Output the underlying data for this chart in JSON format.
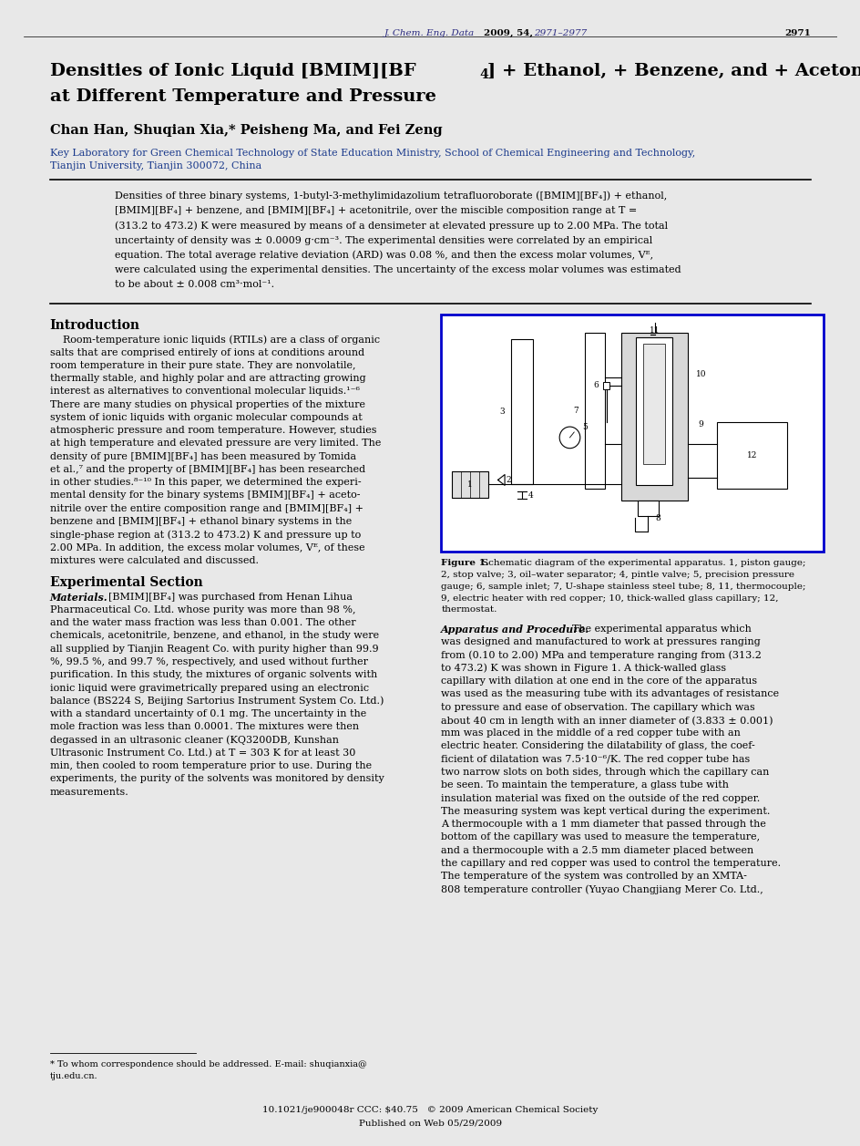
{
  "page_bg": "#ffffff",
  "outer_bg": "#e8e8e8",
  "header_journal_italic": "J. Chem. Eng. Data ",
  "header_bold": "2009, 54, ",
  "header_italic2": "2971–2977",
  "header_page_num": "2971",
  "title_line1": "Densities of Ionic Liquid [BMIM][BF",
  "title_sub": "4",
  "title_line1_end": "] + Ethanol, + Benzene, and + Acetonitrile",
  "title_line2": "at Different Temperature and Pressure",
  "authors": "Chan Han, Shuqian Xia,* Peisheng Ma, and Fei Zeng",
  "affil1": "Key Laboratory for Green Chemical Technology of State Education Ministry, School of Chemical Engineering and Technology,",
  "affil2": "Tianjin University, Tianjin 300072, China",
  "abstract_lines": [
    "Densities of three binary systems, 1-butyl-3-methylimidazolium tetrafluoroborate ([BMIM][BF₄]) + ethanol,",
    "[BMIM][BF₄] + benzene, and [BMIM][BF₄] + acetonitrile, over the miscible composition range at T =",
    "(313.2 to 473.2) K were measured by means of a densimeter at elevated pressure up to 2.00 MPa. The total",
    "uncertainty of density was ± 0.0009 g·cm⁻³. The experimental densities were correlated by an empirical",
    "equation. The total average relative deviation (ARD) was 0.08 %, and then the excess molar volumes, Vᴱ,",
    "were calculated using the experimental densities. The uncertainty of the excess molar volumes was estimated",
    "to be about ± 0.008 cm³·mol⁻¹."
  ],
  "intro_lines": [
    "    Room-temperature ionic liquids (RTILs) are a class of organic",
    "salts that are comprised entirely of ions at conditions around",
    "room temperature in their pure state. They are nonvolatile,",
    "thermally stable, and highly polar and are attracting growing",
    "interest as alternatives to conventional molecular liquids.¹⁻⁶",
    "There are many studies on physical properties of the mixture",
    "system of ionic liquids with organic molecular compounds at",
    "atmospheric pressure and room temperature. However, studies",
    "at high temperature and elevated pressure are very limited. The",
    "density of pure [BMIM][BF₄] has been measured by Tomida",
    "et al.,⁷ and the property of [BMIM][BF₄] has been researched",
    "in other studies.⁸⁻¹⁰ In this paper, we determined the experi-",
    "mental density for the binary systems [BMIM][BF₄] + aceto-",
    "nitrile over the entire composition range and [BMIM][BF₄] +",
    "benzene and [BMIM][BF₄] + ethanol binary systems in the",
    "single-phase region at (313.2 to 473.2) K and pressure up to",
    "2.00 MPa. In addition, the excess molar volumes, Vᴱ, of these",
    "mixtures were calculated and discussed."
  ],
  "mat_text1": "[BMIM][BF₄] was purchased from Henan Lihua",
  "mat_lines": [
    "Pharmaceutical Co. Ltd. whose purity was more than 98 %,",
    "and the water mass fraction was less than 0.001. The other",
    "chemicals, acetonitrile, benzene, and ethanol, in the study were",
    "all supplied by Tianjin Reagent Co. with purity higher than 99.9",
    "%, 99.5 %, and 99.7 %, respectively, and used without further",
    "purification. In this study, the mixtures of organic solvents with",
    "ionic liquid were gravimetrically prepared using an electronic",
    "balance (BS224 S, Beijing Sartorius Instrument System Co. Ltd.)",
    "with a standard uncertainty of 0.1 mg. The uncertainty in the",
    "mole fraction was less than 0.0001. The mixtures were then",
    "degassed in an ultrasonic cleaner (KQ3200DB, Kunshan",
    "Ultrasonic Instrument Co. Ltd.) at T = 303 K for at least 30",
    "min, then cooled to room temperature prior to use. During the",
    "experiments, the purity of the solvents was monitored by density",
    "measurements."
  ],
  "app_text1": "The experimental apparatus which",
  "app_lines": [
    "was designed and manufactured to work at pressures ranging",
    "from (0.10 to 2.00) MPa and temperature ranging from (313.2",
    "to 473.2) K was shown in Figure 1. A thick-walled glass",
    "capillary with dilation at one end in the core of the apparatus",
    "was used as the measuring tube with its advantages of resistance",
    "to pressure and ease of observation. The capillary which was",
    "about 40 cm in length with an inner diameter of (3.833 ± 0.001)",
    "mm was placed in the middle of a red copper tube with an",
    "electric heater. Considering the dilatability of glass, the coef-",
    "ficient of dilatation was 7.5·10⁻⁶/K. The red copper tube has",
    "two narrow slots on both sides, through which the capillary can",
    "be seen. To maintain the temperature, a glass tube with",
    "insulation material was fixed on the outside of the red copper.",
    "The measuring system was kept vertical during the experiment.",
    "A thermocouple with a 1 mm diameter that passed through the",
    "bottom of the capillary was used to measure the temperature,",
    "and a thermocouple with a 2.5 mm diameter placed between",
    "the capillary and red copper was used to control the temperature.",
    "The temperature of the system was controlled by an XMTA-",
    "808 temperature controller (Yuyao Changjiang Merer Co. Ltd.,"
  ],
  "fig_cap_lines": [
    "Figure 1. Schematic diagram of the experimental apparatus. 1, piston gauge;",
    "2, stop valve; 3, oil–water separator; 4, pintle valve; 5, precision pressure",
    "gauge; 6, sample inlet; 7, U-shape stainless steel tube; 8, 11, thermocouple;",
    "9, electric heater with red copper; 10, thick-walled glass capillary; 12,",
    "thermostat."
  ],
  "footnote1": "* To whom correspondence should be addressed. E-mail: shuqianxia@",
  "footnote2": "tju.edu.cn.",
  "doi": "10.1021/je900048r CCC: $40.75   © 2009 American Chemical Society",
  "published": "Published on Web 05/29/2009",
  "text_black": "#000000",
  "text_blue": "#1a3a8c",
  "text_gray": "#333333"
}
